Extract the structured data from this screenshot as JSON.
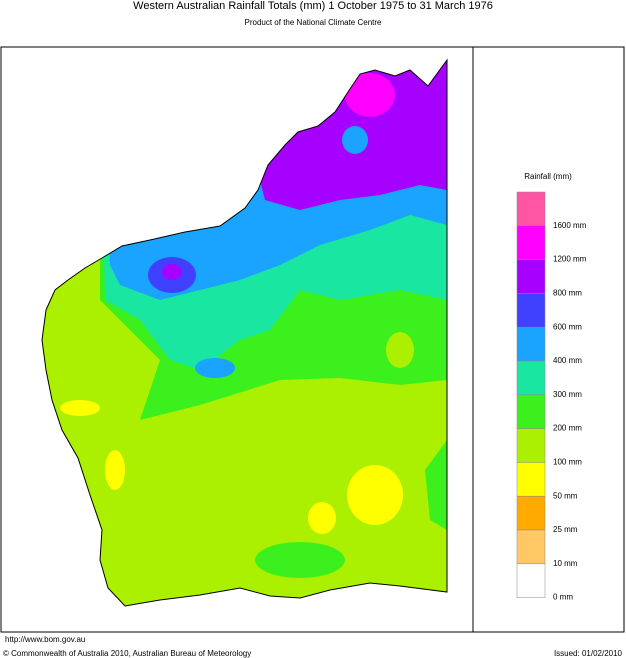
{
  "header": {
    "title": "Western Australian Rainfall Totals (mm) 1 October 1975 to 31 March 1976",
    "subtitle": "Product of the National Climate Centre"
  },
  "legend": {
    "title": "Rainfall (mm)",
    "items": [
      {
        "label": "1600 mm",
        "color": "#ff55a5"
      },
      {
        "label": "1200 mm",
        "color": "#ff00ff"
      },
      {
        "label": "800 mm",
        "color": "#a600ff"
      },
      {
        "label": "600 mm",
        "color": "#4040ff"
      },
      {
        "label": "400 mm",
        "color": "#1aa3ff"
      },
      {
        "label": "300 mm",
        "color": "#19e6a0"
      },
      {
        "label": "200 mm",
        "color": "#3cf01e"
      },
      {
        "label": "100 mm",
        "color": "#aaf000"
      },
      {
        "label": "50 mm",
        "color": "#ffff00"
      },
      {
        "label": "25 mm",
        "color": "#ffaa00"
      },
      {
        "label": "10 mm",
        "color": "#ffc864"
      },
      {
        "label": "0 mm",
        "color": "#ffffff"
      }
    ]
  },
  "footer": {
    "url": "http://www.bom.gov.au",
    "copyright": "© Commonwealth of Australia 2010, Australian Bureau of Meteorology",
    "issued": "Issued: 01/02/2010"
  }
}
